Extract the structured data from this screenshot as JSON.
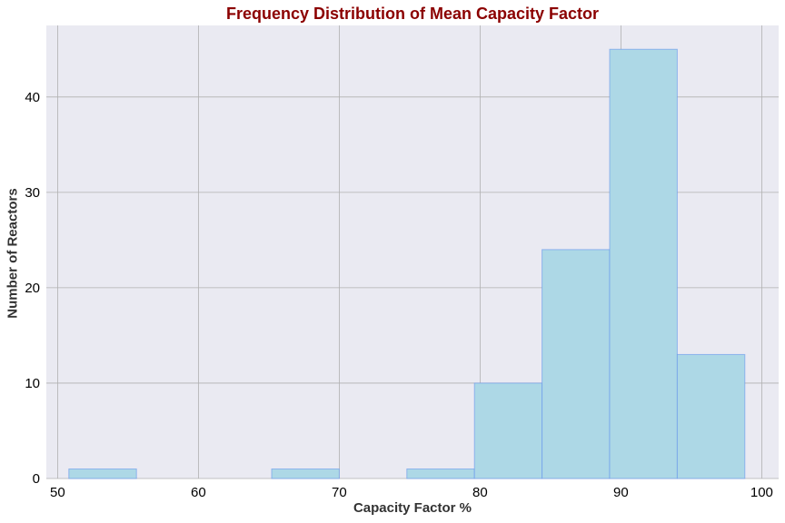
{
  "chart_data": {
    "type": "bar",
    "subtype": "histogram",
    "title": "Frequency Distribution of Mean Capacity Factor",
    "xlabel": "Capacity Factor %",
    "ylabel": "Number of Reactors",
    "xlim": [
      49.2,
      101.2
    ],
    "ylim": [
      0,
      47.5
    ],
    "xticks": [
      50,
      60,
      70,
      80,
      90,
      100
    ],
    "yticks": [
      0,
      10,
      20,
      30,
      40
    ],
    "grid": true,
    "bin_edges": [
      50.8,
      55.6,
      60.4,
      65.2,
      70.0,
      74.8,
      79.6,
      84.4,
      89.2,
      94.0,
      98.8
    ],
    "values": [
      1,
      0,
      0,
      1,
      0,
      1,
      10,
      24,
      45,
      13
    ],
    "colors": {
      "bar_fill": "#add8e6",
      "bar_edge": "#6495ed",
      "plot_background": "#eaeaf2",
      "grid": "#b0b0b0",
      "title": "#8b0000",
      "axis_label": "#333333"
    }
  }
}
